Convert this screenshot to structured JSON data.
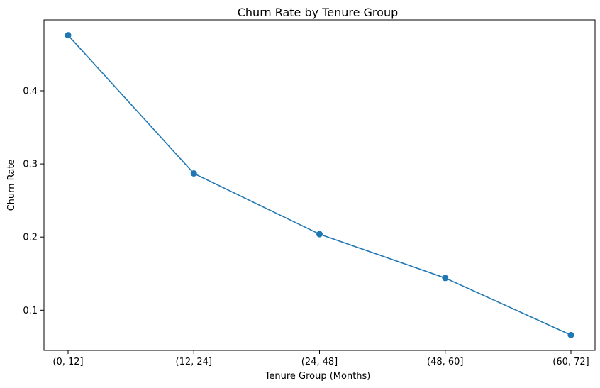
{
  "chart_data": {
    "type": "line",
    "title": "Churn Rate by Tenure Group",
    "xlabel": "Tenure Group (Months)",
    "ylabel": "Churn Rate",
    "categories": [
      "(0, 12]",
      "(12, 24]",
      "(24, 48]",
      "(48, 60]",
      "(60, 72]"
    ],
    "series": [
      {
        "values": [
          0.476,
          0.287,
          0.204,
          0.144,
          0.066
        ],
        "color": "#1f77b4"
      }
    ],
    "yticks": [
      0.1,
      0.2,
      0.3,
      0.4
    ],
    "ytick_labels": [
      "0.1",
      "0.2",
      "0.3",
      "0.4"
    ],
    "ylim": [
      0.045,
      0.497
    ],
    "grid": false,
    "marker": "circle"
  }
}
